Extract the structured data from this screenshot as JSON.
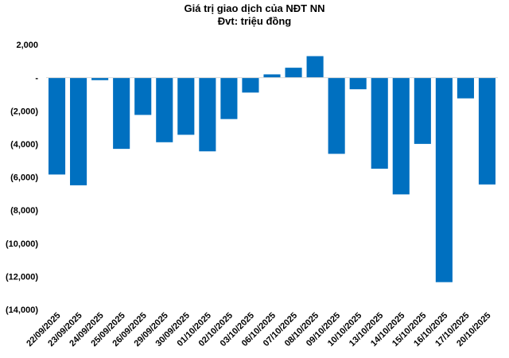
{
  "chart_data": {
    "type": "bar",
    "title": "Giá trị giao dịch của NĐT NN",
    "subtitle": "Đvt: triệu đồng",
    "xlabel": "",
    "ylabel": "",
    "ylim": [
      -14000,
      2000
    ],
    "yticks": [
      2000,
      0,
      -2000,
      -4000,
      -6000,
      -8000,
      -10000,
      -12000,
      -14000
    ],
    "ytick_labels": [
      "2,000",
      "-",
      "(2,000)",
      "(4,000)",
      "(6,000)",
      "(8,000)",
      "(10,000)",
      "(12,000)",
      "(14,000)"
    ],
    "grid": false,
    "legend": "none",
    "bar_color": "#0070C0",
    "categories": [
      "22/09/2025",
      "23/09/2025",
      "24/09/2025",
      "25/09/2025",
      "26/09/2025",
      "29/09/2025",
      "30/09/2025",
      "01/10/2025",
      "02/10/2025",
      "03/10/2025",
      "06/10/2025",
      "07/10/2025",
      "08/10/2025",
      "09/10/2025",
      "10/10/2025",
      "13/10/2025",
      "14/10/2025",
      "15/10/2025",
      "16/10/2025",
      "17/10/2025",
      "20/10/2025"
    ],
    "values": [
      -5850,
      -6500,
      -150,
      -4300,
      -2250,
      -3900,
      -3450,
      -4450,
      -2500,
      -900,
      200,
      600,
      1300,
      -4600,
      -700,
      -5500,
      -7050,
      -4000,
      -12350,
      -1250,
      -6450
    ]
  }
}
